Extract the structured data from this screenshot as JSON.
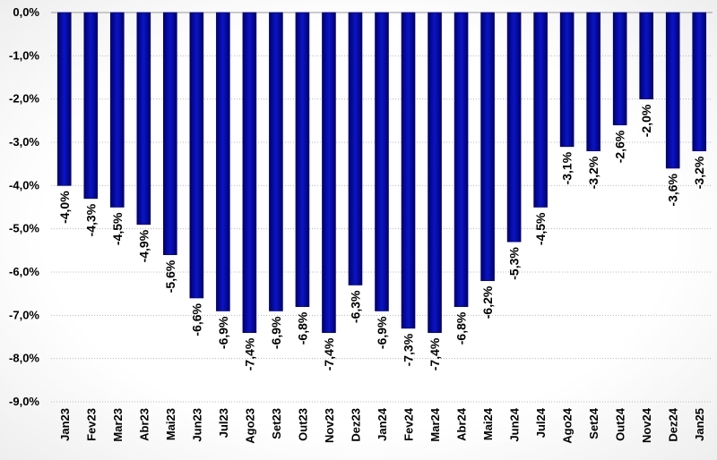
{
  "chart_data": {
    "type": "bar",
    "title": "",
    "xlabel": "",
    "ylabel": "",
    "categories": [
      "Jan23",
      "Fev23",
      "Mar23",
      "Abr23",
      "Mai23",
      "Jun23",
      "Jul23",
      "Ago23",
      "Set23",
      "Out23",
      "Nov23",
      "Dez23",
      "Jan24",
      "Fev24",
      "Mar24",
      "Abr24",
      "Mai24",
      "Jun24",
      "Jul24",
      "Ago24",
      "Set24",
      "Out24",
      "Nov24",
      "Dez24",
      "Jan25"
    ],
    "values": [
      -4.0,
      -4.3,
      -4.5,
      -4.9,
      -5.6,
      -6.6,
      -6.9,
      -7.4,
      -6.9,
      -6.8,
      -7.4,
      -6.3,
      -6.9,
      -7.3,
      -7.4,
      -6.8,
      -6.2,
      -5.3,
      -4.5,
      -3.1,
      -3.2,
      -2.6,
      -2.0,
      -3.6,
      -3.2
    ],
    "data_labels": [
      "-4,0%",
      "-4,3%",
      "-4,5%",
      "-4,9%",
      "-5,6%",
      "-6,6%",
      "-6,9%",
      "-7,4%",
      "-6,9%",
      "-6,8%",
      "-7,4%",
      "-6,3%",
      "-6,9%",
      "-7,3%",
      "-7,4%",
      "-6,8%",
      "-6,2%",
      "-5,3%",
      "-4,5%",
      "-3,1%",
      "-3,2%",
      "-2,6%",
      "-2,0%",
      "-3,6%",
      "-3,2%"
    ],
    "ylim": [
      -9.0,
      0.0
    ],
    "yticks": [
      0,
      -1,
      -2,
      -3,
      -4,
      -5,
      -6,
      -7,
      -8,
      -9
    ],
    "ytick_labels": [
      "0,0%",
      "-1,0%",
      "-2,0%",
      "-3,0%",
      "-4,0%",
      "-5,0%",
      "-6,0%",
      "-7,0%",
      "-8,0%",
      "-9,0%"
    ],
    "grid": true,
    "legend": "none",
    "bar_color": "#0a14c8",
    "bar_color_dark": "#00006e"
  }
}
